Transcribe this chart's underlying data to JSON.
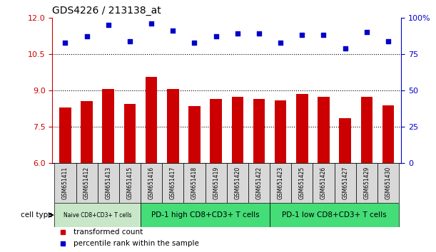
{
  "title": "GDS4226 / 213138_at",
  "samples": [
    "GSM651411",
    "GSM651412",
    "GSM651413",
    "GSM651415",
    "GSM651416",
    "GSM651417",
    "GSM651418",
    "GSM651419",
    "GSM651420",
    "GSM651422",
    "GSM651423",
    "GSM651425",
    "GSM651426",
    "GSM651427",
    "GSM651429",
    "GSM651430"
  ],
  "transformed_count": [
    8.3,
    8.55,
    9.05,
    8.45,
    9.55,
    9.05,
    8.35,
    8.65,
    8.75,
    8.65,
    8.6,
    8.85,
    8.75,
    7.85,
    8.75,
    8.4
  ],
  "percentile_rank": [
    83,
    87,
    95,
    84,
    96,
    91,
    83,
    87,
    89,
    89,
    83,
    88,
    88,
    79,
    90,
    84
  ],
  "ylim_left": [
    6,
    12
  ],
  "ylim_right": [
    0,
    100
  ],
  "yticks_left": [
    6,
    7.5,
    9,
    10.5,
    12
  ],
  "yticks_right": [
    0,
    25,
    50,
    75,
    100
  ],
  "ytick_labels_right": [
    "0",
    "25",
    "50",
    "75",
    "100%"
  ],
  "bar_color": "#cc0000",
  "dot_color": "#0000cc",
  "cell_groups": [
    {
      "label": "Naive CD8+CD3+ T cells",
      "start": 0,
      "end": 4,
      "color": "#c8e6c8"
    },
    {
      "label": "PD-1 high CD8+CD3+ T cells",
      "start": 4,
      "end": 10,
      "color": "#44dd77"
    },
    {
      "label": "PD-1 low CD8+CD3+ T cells",
      "start": 10,
      "end": 16,
      "color": "#44dd77"
    }
  ],
  "legend_items": [
    {
      "label": "transformed count",
      "color": "#cc0000"
    },
    {
      "label": "percentile rank within the sample",
      "color": "#0000cc"
    }
  ],
  "cell_type_label": "cell type",
  "sample_box_color": "#d8d8d8",
  "background_color": "#ffffff",
  "bar_width": 0.55
}
